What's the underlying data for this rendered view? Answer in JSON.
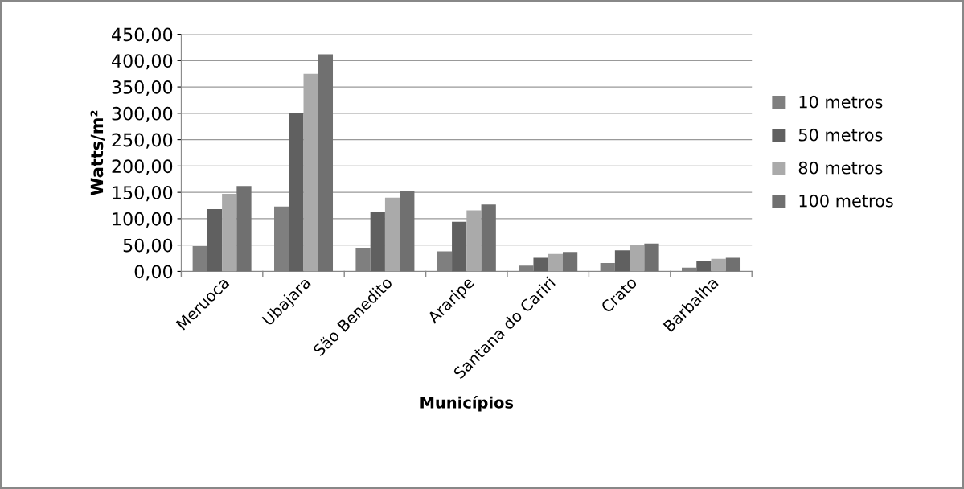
{
  "chart_data": {
    "type": "bar",
    "xlabel": "Municípios",
    "ylabel": "Watts/m²",
    "categories": [
      "Meruoca",
      "Ubajara",
      "São Benedito",
      "Araripe",
      "Santana do Cariri",
      "Crato",
      "Barbalha"
    ],
    "series": [
      {
        "name": "10 metros",
        "color": "#7f7f7f",
        "values": [
          48,
          123,
          45,
          38,
          11,
          16,
          7
        ]
      },
      {
        "name": "50 metros",
        "color": "#606060",
        "values": [
          118,
          300,
          112,
          94,
          26,
          40,
          20
        ]
      },
      {
        "name": "80 metros",
        "color": "#aaaaaa",
        "values": [
          147,
          375,
          140,
          116,
          33,
          50,
          24
        ]
      },
      {
        "name": "100 metros",
        "color": "#707070",
        "values": [
          162,
          412,
          153,
          127,
          37,
          53,
          26
        ]
      }
    ],
    "ylim": [
      0,
      450
    ],
    "yticks": [
      {
        "value": 0,
        "label": "0,00"
      },
      {
        "value": 50,
        "label": "50,00"
      },
      {
        "value": 100,
        "label": "100,00"
      },
      {
        "value": 150,
        "label": "150,00"
      },
      {
        "value": 200,
        "label": "200,00"
      },
      {
        "value": 250,
        "label": "250,00"
      },
      {
        "value": 300,
        "label": "300,00"
      },
      {
        "value": 350,
        "label": "350,00"
      },
      {
        "value": 400,
        "label": "400,00"
      },
      {
        "value": 450,
        "label": "450,00"
      }
    ],
    "grid": "y",
    "legend": "right"
  }
}
